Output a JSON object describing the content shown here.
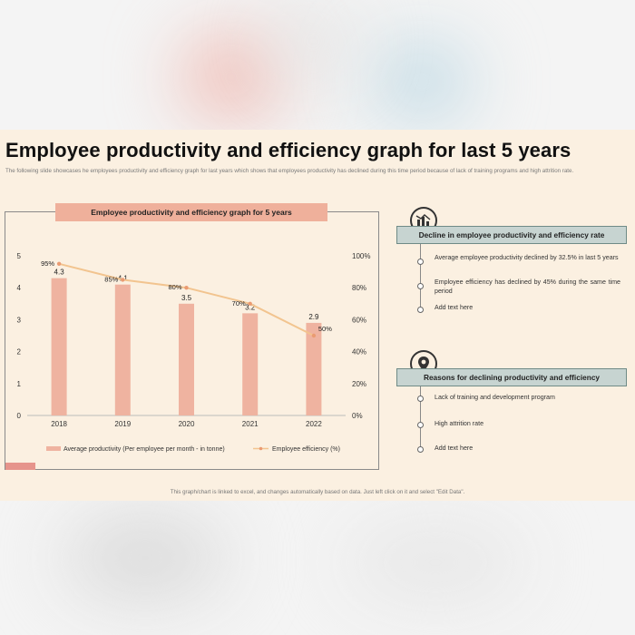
{
  "slide": {
    "title": "Employee productivity and efficiency graph for last 5 years",
    "subtitle": "The following slide showcases he employees productivity and efficiency graph for last years which shows that employees productivity has declined during this time period because of lack of training programs and high attrition rate.",
    "footer": "This graph/chart is linked to excel, and changes automatically based on data. Just left click on it and select \"Edit Data\"."
  },
  "chart_data": {
    "type": "bar",
    "title": "Employee productivity and efficiency graph for 5 years",
    "categories": [
      "2018",
      "2019",
      "2020",
      "2021",
      "2022"
    ],
    "series": [
      {
        "name": "Average productivity (Per employee per month - in tonne)",
        "type": "bar",
        "axis": "left",
        "values": [
          4.3,
          4.1,
          3.5,
          3.2,
          2.9
        ],
        "labels": [
          "4.3",
          "4.1",
          "3.5",
          "3.2",
          "2.9"
        ],
        "color": "#efb3a0"
      },
      {
        "name": "Employee efficiency (%)",
        "type": "line",
        "axis": "right",
        "values": [
          95,
          85,
          80,
          70,
          50
        ],
        "labels": [
          "95%",
          "85%",
          "80%",
          "70%",
          "50%"
        ],
        "color": "#f2c48f",
        "marker_color": "#ea9b72"
      }
    ],
    "left_axis": {
      "ylim": [
        0,
        5
      ],
      "ticks": [
        "0",
        "1",
        "2",
        "3",
        "4",
        "5"
      ]
    },
    "right_axis": {
      "ylim": [
        0,
        100
      ],
      "ticks": [
        "0%",
        "20%",
        "40%",
        "60%",
        "80%",
        "100%"
      ]
    },
    "legend_position": "bottom"
  },
  "sections": [
    {
      "heading": "Decline in employee productivity and efficiency rate",
      "icon": "chart-decline-icon",
      "items": [
        "Average employee productivity declined by 32.5% in last 5 years",
        "Employee efficiency has declined by 45% during the same time period",
        "Add text here"
      ]
    },
    {
      "heading": "Reasons for declining productivity and efficiency",
      "icon": "location-pin-icon",
      "items": [
        "Lack of training and development program",
        "High attrition rate",
        "Add text here"
      ]
    }
  ]
}
